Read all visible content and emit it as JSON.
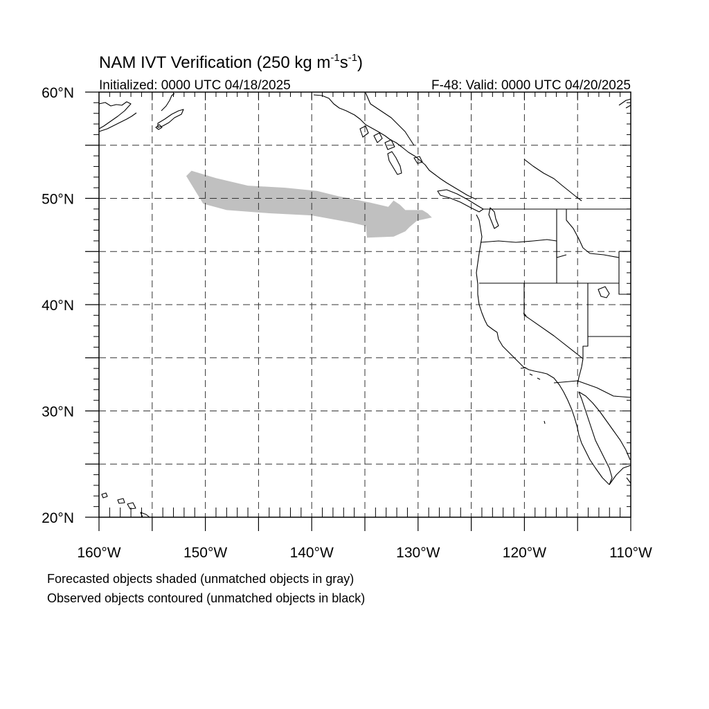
{
  "title": {
    "prefix": "NAM IVT Verification (250 kg m",
    "exp1": "-1",
    "middle": "s",
    "exp2": "-1",
    "suffix": ")"
  },
  "subtitle_left": "Initialized: 0000 UTC 04/18/2025",
  "subtitle_right": "F-48: Valid: 0000 UTC 04/20/2025",
  "map": {
    "lon_range": [
      -160,
      -110
    ],
    "lat_range": [
      20,
      60
    ],
    "lon_ticks": [
      {
        "value": -160,
        "label": "160°W"
      },
      {
        "value": -150,
        "label": "150°W"
      },
      {
        "value": -140,
        "label": "140°W"
      },
      {
        "value": -130,
        "label": "130°W"
      },
      {
        "value": -120,
        "label": "120°W"
      },
      {
        "value": -110,
        "label": "110°W"
      }
    ],
    "lat_ticks": [
      {
        "value": 60,
        "label": "60°N"
      },
      {
        "value": 50,
        "label": "50°N"
      },
      {
        "value": 40,
        "label": "40°N"
      },
      {
        "value": 30,
        "label": "30°N"
      },
      {
        "value": 20,
        "label": "20°N"
      }
    ],
    "gridlines": {
      "lon": [
        -155,
        -150,
        -145,
        -140,
        -135,
        -130,
        -125,
        -120,
        -115
      ],
      "lat": [
        25,
        30,
        35,
        40,
        45,
        50,
        55
      ],
      "style": "dashed"
    },
    "forecast_objects": [
      {
        "matched": false,
        "fill": "#c0c0c0",
        "outline_lonlat": [
          [
            -151.3,
            52.6
          ],
          [
            -149.0,
            51.9
          ],
          [
            -146.0,
            51.2
          ],
          [
            -142.5,
            51.0
          ],
          [
            -139.5,
            50.7
          ],
          [
            -137.5,
            50.2
          ],
          [
            -134.5,
            49.6
          ],
          [
            -132.8,
            49.2
          ],
          [
            -132.3,
            49.8
          ],
          [
            -131.7,
            49.4
          ],
          [
            -131.2,
            48.9
          ],
          [
            -129.6,
            48.9
          ],
          [
            -129.1,
            48.6
          ],
          [
            -128.7,
            48.2
          ],
          [
            -130.1,
            47.9
          ],
          [
            -130.8,
            47.3
          ],
          [
            -131.2,
            46.9
          ],
          [
            -132.3,
            46.4
          ],
          [
            -134.8,
            46.3
          ],
          [
            -134.9,
            47.4
          ],
          [
            -136.2,
            47.7
          ],
          [
            -140.0,
            48.4
          ],
          [
            -144.0,
            48.6
          ],
          [
            -148.0,
            48.9
          ],
          [
            -150.2,
            49.5
          ],
          [
            -151.0,
            50.8
          ],
          [
            -151.8,
            52.1
          ]
        ]
      }
    ],
    "observed_objects": [],
    "colors": {
      "forecast_unmatched": "#c0c0c0",
      "observed_unmatched": "#000000",
      "coastline": "#000000"
    }
  },
  "legend": {
    "line1": "Forecasted objects shaded (unmatched objects in gray)",
    "line2": "Observed objects contoured (unmatched objects in black)"
  }
}
